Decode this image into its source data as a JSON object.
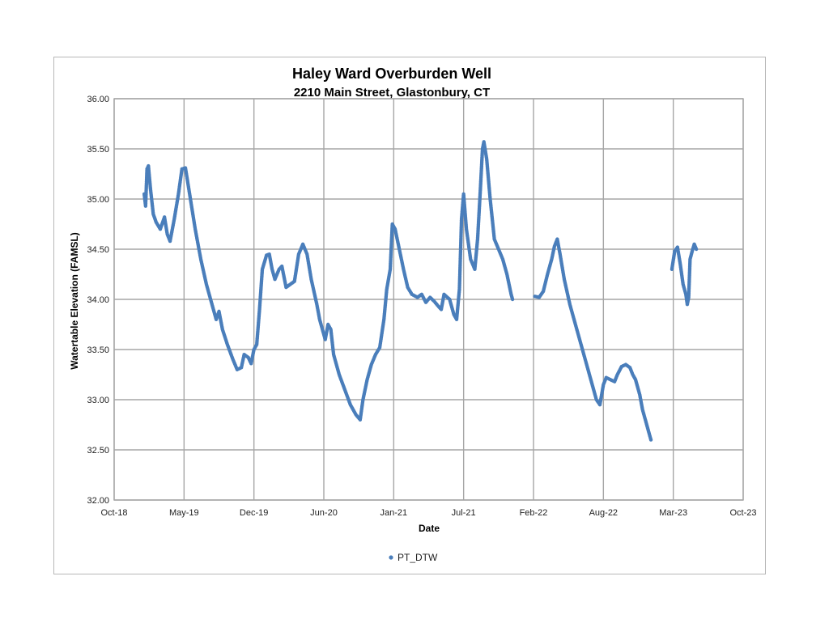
{
  "chart_data": {
    "type": "scatter",
    "title": "Haley Ward Overburden Well",
    "subtitle": "2210 Main Street, Glastonbury, CT",
    "xlabel": "Date",
    "ylabel": "Watertable Elevation (FAMSL)",
    "ylim": [
      32.0,
      36.0
    ],
    "y_ticks": [
      "32.00",
      "32.50",
      "33.00",
      "33.50",
      "34.00",
      "34.50",
      "35.00",
      "35.50",
      "36.00"
    ],
    "x_ticks": [
      "Oct-18",
      "May-19",
      "Dec-19",
      "Jun-20",
      "Jan-21",
      "Jul-21",
      "Feb-22",
      "Aug-22",
      "Mar-23",
      "Oct-23"
    ],
    "grid": true,
    "legend": "bottom",
    "marker_color": "#4a7ebb",
    "series": [
      {
        "name": "PT_DTW",
        "segments": [
          {
            "t": [
              0.0,
              0.05,
              0.1,
              0.15,
              0.2,
              0.25,
              0.3,
              0.35,
              0.4,
              0.45,
              0.5,
              0.55,
              0.6,
              0.65,
              0.7,
              0.75,
              0.8,
              0.85,
              0.9,
              0.95,
              1.0,
              1.05,
              1.1,
              1.15,
              1.2,
              1.25,
              1.3,
              1.35,
              1.4,
              1.45,
              1.5,
              1.55,
              1.6,
              1.65,
              1.7,
              1.75,
              1.8,
              1.85,
              1.9,
              1.95,
              2.0,
              2.05,
              2.1,
              2.15,
              2.2,
              2.25,
              2.3,
              2.35,
              2.4,
              2.45,
              2.5,
              2.55,
              2.6,
              2.65,
              2.7,
              2.75,
              2.8,
              2.85,
              2.9,
              2.95,
              3.0,
              3.05,
              3.1,
              3.15,
              3.2,
              3.25,
              3.3,
              3.35,
              3.4,
              3.45,
              3.5,
              3.55,
              3.6,
              3.65,
              3.7,
              3.75,
              3.8,
              3.85,
              3.9,
              3.95,
              4.0,
              4.05,
              4.1,
              4.15,
              4.2,
              4.25,
              4.3,
              4.35,
              4.4,
              4.45,
              4.5,
              4.55,
              4.6,
              4.65,
              4.7,
              4.75,
              4.8,
              4.85,
              4.9,
              4.95,
              5.0,
              5.05,
              5.1,
              5.15,
              5.2,
              5.25,
              5.3,
              5.35,
              5.4,
              5.45,
              5.5,
              5.55,
              5.6,
              5.65,
              5.7,
              5.75,
              5.8,
              5.85,
              5.9,
              5.95,
              6.0,
              6.05,
              6.1,
              6.15,
              6.2,
              6.25,
              6.3,
              6.35,
              6.4,
              6.45,
              6.5,
              6.55,
              6.6,
              6.65,
              6.7,
              6.75,
              6.8,
              6.85,
              6.9,
              6.95,
              7.0,
              7.05,
              7.1,
              7.15,
              7.2,
              7.25,
              7.3,
              7.35,
              7.4,
              7.45,
              7.5,
              7.55,
              7.6,
              7.65,
              7.7,
              7.75,
              7.8,
              7.85,
              7.9,
              7.95,
              8.0,
              8.05,
              8.1,
              8.15,
              8.2,
              8.25,
              8.3,
              8.35,
              8.4,
              8.45,
              8.5,
              8.55,
              8.6,
              8.65,
              8.7,
              8.75,
              8.8,
              8.85,
              8.9,
              8.95,
              9.0,
              9.05,
              9.1,
              9.15,
              9.2,
              9.25,
              9.3,
              9.35,
              9.4,
              9.45,
              9.5,
              9.55,
              9.6,
              9.65,
              9.7,
              9.75,
              9.8,
              9.85,
              9.9,
              9.95,
              10.0,
              10.05,
              10.1,
              10.15,
              10.2,
              10.25,
              10.3,
              10.35,
              10.4,
              10.45,
              10.5,
              10.55,
              10.6,
              10.65,
              10.7,
              10.75,
              10.8,
              10.85,
              10.9,
              10.95,
              11.0,
              11.05,
              11.1,
              11.15,
              11.2,
              11.25,
              11.3,
              11.35,
              11.4,
              11.45,
              11.5,
              11.55,
              11.6,
              11.65,
              11.7,
              11.75,
              11.8,
              11.85,
              11.9,
              11.95,
              12.0,
              12.05,
              12.1,
              12.15,
              12.2,
              12.25,
              12.3,
              12.35,
              12.4,
              12.45,
              12.5,
              12.55,
              12.6,
              12.65,
              12.7,
              12.75,
              12.8,
              12.85,
              12.9,
              12.95,
              13.0,
              13.05,
              13.1,
              13.15,
              13.2,
              13.25,
              13.3,
              13.35,
              13.4,
              13.45,
              13.5,
              13.55,
              13.6,
              13.65,
              13.7,
              13.75,
              13.8,
              13.85,
              13.9,
              13.95,
              14.0,
              14.05,
              14.1,
              14.15,
              14.2,
              14.25,
              14.3,
              14.35,
              14.4,
              14.45,
              14.5,
              14.55,
              14.6,
              14.65,
              14.7,
              14.75,
              14.8,
              14.85,
              14.9,
              14.95,
              15.0,
              15.05,
              15.1,
              15.15,
              15.2,
              15.25,
              15.3,
              15.35,
              15.4,
              15.45,
              15.5,
              15.55,
              15.6,
              15.65,
              15.7,
              15.75,
              15.8,
              15.85,
              15.9,
              15.95,
              16.0,
              16.05,
              16.1,
              16.15,
              16.2,
              16.25,
              16.3,
              16.35,
              16.4,
              16.45,
              16.5,
              16.55,
              16.6,
              16.65,
              16.7,
              16.75,
              16.8,
              16.85,
              16.9,
              16.95,
              17.0,
              17.05,
              17.1,
              17.15,
              17.2,
              17.25,
              17.3,
              17.35,
              17.4,
              17.45,
              17.5,
              17.55,
              17.6,
              17.65,
              17.7,
              17.75,
              17.8,
              17.85,
              17.9,
              17.95,
              18.0,
              18.05,
              18.1,
              18.15,
              18.2,
              18.25,
              18.3,
              18.35,
              18.4,
              18.45,
              18.5,
              18.55,
              18.6,
              18.65,
              18.7,
              18.75,
              18.8,
              18.85,
              18.9,
              18.95,
              19.0,
              19.05,
              19.1,
              19.15,
              19.2,
              19.25,
              19.3,
              19.35,
              19.4,
              19.45,
              19.5,
              19.55,
              19.6,
              19.65,
              19.7,
              19.75,
              19.8,
              19.85,
              19.9,
              19.95,
              20.0,
              20.05,
              20.1,
              20.15,
              20.2,
              20.25,
              20.3,
              20.35,
              20.4,
              20.45,
              20.5,
              20.55,
              20.6,
              20.65,
              20.7,
              20.75,
              20.8,
              20.85,
              20.9,
              20.95,
              21.0,
              21.05,
              21.1,
              21.15,
              21.2,
              21.25,
              21.3,
              21.35,
              21.4,
              21.45,
              21.5,
              21.55,
              21.6,
              21.65,
              21.7,
              21.75,
              21.8,
              21.85,
              21.9,
              21.95,
              22.0,
              22.05,
              22.1,
              22.15,
              22.2,
              22.25,
              22.3,
              22.35,
              22.4,
              22.45,
              22.5,
              22.55,
              22.6,
              22.65,
              22.7,
              22.75,
              22.8,
              22.85,
              22.9,
              22.95,
              23.0,
              23.05,
              23.1,
              23.15,
              23.2,
              23.25,
              23.3,
              23.35,
              23.4,
              23.45,
              23.5,
              23.55,
              23.6,
              23.65,
              23.7,
              23.75,
              23.8,
              23.85,
              23.9,
              23.95,
              24.0,
              24.05,
              24.1,
              24.15,
              24.2,
              24.25,
              24.3,
              24.35,
              24.4,
              24.45,
              24.5,
              24.55,
              24.6,
              24.65,
              24.7,
              24.75,
              24.8,
              24.85,
              24.9,
              24.95,
              25.0,
              25.05,
              25.1,
              25.15,
              25.2,
              25.25,
              25.3,
              25.35,
              25.4,
              25.45,
              25.5,
              25.55,
              25.6,
              25.65,
              25.7,
              25.75,
              25.8,
              25.85,
              25.9,
              25.95,
              26.0,
              26.05,
              26.1,
              26.15,
              26.2,
              26.25,
              26.3,
              26.35,
              26.4,
              26.45,
              26.5,
              26.55,
              26.6,
              26.65,
              26.7,
              26.75,
              26.8,
              26.85,
              26.9,
              26.95,
              27.0,
              27.05,
              27.1,
              27.15,
              27.2,
              27.25,
              27.3,
              27.35,
              27.4,
              27.45,
              27.5,
              27.55,
              27.6,
              27.65,
              27.7,
              27.75,
              27.8,
              27.85,
              27.9,
              27.95,
              28.0,
              28.05,
              28.1,
              28.15,
              28.2,
              28.25,
              28.3,
              28.35,
              28.4,
              28.45,
              28.5,
              28.55,
              28.6,
              28.65,
              28.7,
              28.75,
              28.8,
              28.85,
              28.9,
              28.95,
              29.0,
              29.05,
              29.1,
              29.15,
              29.2,
              29.25,
              29.3,
              29.35,
              29.4,
              29.45,
              29.5,
              29.55,
              29.6,
              29.65,
              29.7,
              29.75,
              29.8,
              29.85,
              29.9,
              29.95,
              30.0,
              30.05,
              30.1,
              30.15,
              30.2,
              30.25,
              30.3,
              30.35,
              30.4,
              30.45,
              30.5,
              30.55,
              30.6,
              30.65,
              30.7,
              30.75,
              30.8,
              30.85,
              30.9,
              30.95,
              31.0,
              31.05,
              31.1,
              31.15,
              31.2,
              31.25,
              31.3,
              31.35,
              31.4,
              31.45,
              31.5,
              31.55,
              31.6,
              31.65,
              31.7,
              31.75,
              31.8,
              31.85,
              31.9,
              31.95,
              32.0,
              32.05,
              32.1,
              32.15,
              32.2,
              32.25,
              32.3,
              32.35,
              32.4,
              32.45,
              32.5,
              32.55,
              32.6,
              32.65,
              32.7,
              32.75,
              32.8,
              32.85,
              32.9,
              32.95,
              33.0,
              33.05,
              33.1,
              33.15,
              33.2,
              33.25,
              33.3,
              33.35,
              33.4,
              33.45,
              33.5,
              33.55,
              33.6,
              33.65,
              33.7,
              33.75,
              33.8,
              33.85,
              33.9,
              33.95,
              34.0,
              34.05,
              34.1,
              34.15,
              34.2,
              34.25,
              34.3,
              34.35,
              34.4,
              34.45,
              34.5,
              34.55,
              34.6,
              34.65,
              34.7,
              34.75,
              34.8,
              34.85,
              34.9,
              34.95,
              35.0,
              35.05,
              35.1,
              35.15,
              35.2,
              35.25,
              35.3,
              35.35,
              35.4,
              35.45,
              35.5,
              35.55,
              35.6,
              35.65,
              35.7,
              35.75,
              35.8,
              35.85,
              35.9,
              35.95,
              36.0,
              36.05,
              36.1,
              36.15,
              36.2,
              36.25,
              36.3,
              36.35,
              36.4,
              36.45,
              36.5,
              36.55,
              36.6,
              36.65,
              36.7,
              36.75,
              36.8,
              36.85,
              36.9,
              36.95,
              37.0,
              37.05,
              37.1,
              37.15,
              37.2,
              37.25,
              37.3,
              37.35,
              37.4,
              37.45,
              37.5,
              37.55,
              37.6,
              37.65,
              37.7,
              37.75,
              37.8,
              37.85,
              37.9,
              37.95,
              38.0,
              38.05,
              38.1,
              38.15,
              38.2,
              38.25,
              38.3,
              38.35,
              38.4,
              38.45,
              38.5,
              38.55,
              38.6,
              38.65,
              38.7,
              38.75,
              38.8,
              38.85,
              38.9,
              38.95,
              39.0,
              39.05,
              39.1,
              39.15,
              39.2,
              39.25,
              39.3,
              39.35,
              39.4,
              39.45,
              39.5,
              39.55,
              39.6,
              39.65,
              39.7,
              39.75,
              39.8,
              39.85,
              39.9,
              39.95,
              40.0,
              40.05,
              40.1,
              40.15,
              40.2,
              40.25,
              40.3,
              40.35,
              40.4,
              40.45,
              40.5,
              40.55,
              40.6,
              40.65,
              40.7,
              40.75,
              40.8,
              40.85,
              40.9,
              40.95,
              41.0,
              41.05,
              41.1,
              41.15,
              41.2,
              41.25,
              41.3,
              41.35,
              41.4,
              41.45,
              41.5,
              41.55,
              41.6,
              41.65,
              41.7,
              41.75,
              41.8,
              41.85,
              41.9,
              41.95,
              42.0,
              42.05,
              42.1,
              42.15,
              42.2,
              42.25,
              42.3,
              42.35,
              42.4,
              42.45,
              42.5,
              42.55,
              42.6,
              42.65,
              42.7,
              42.75,
              42.8,
              42.85,
              42.9,
              42.95,
              43.0,
              43.05,
              43.1,
              43.15,
              43.2,
              43.25,
              43.3,
              43.35,
              43.4,
              43.45,
              43.5,
              43.55,
              43.6,
              43.65,
              43.7,
              43.75,
              43.8,
              43.85,
              43.9,
              43.95,
              44.0
            ],
            "note": "unused"
          }
        ]
      }
    ]
  }
}
